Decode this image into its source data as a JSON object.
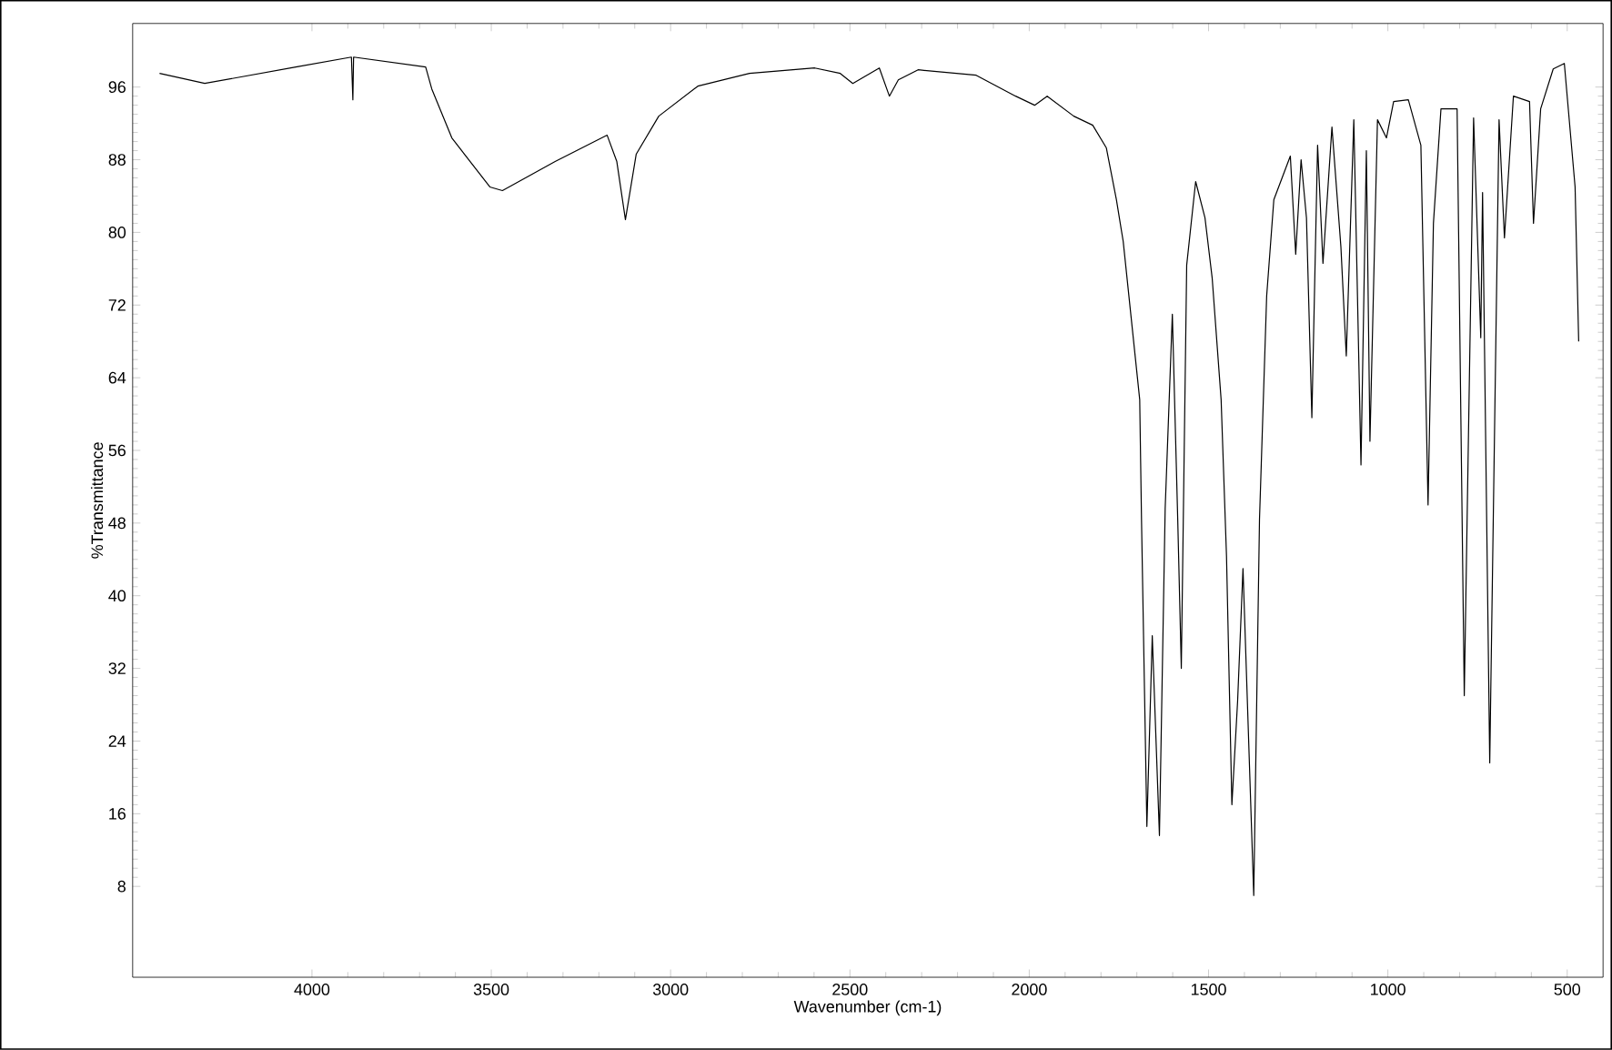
{
  "chart_data": {
    "type": "line",
    "xlabel": "Wavenumber (cm-1)",
    "ylabel": "%Transmittance",
    "xlim": [
      4500,
      400
    ],
    "ylim": [
      -2,
      103
    ],
    "xticks": [
      4000,
      3500,
      3000,
      2500,
      2000,
      1500,
      1000,
      500
    ],
    "yticks": [
      8,
      16,
      24,
      32,
      40,
      48,
      56,
      64,
      72,
      80,
      88,
      96
    ],
    "grid": false,
    "marker": "none",
    "line_style": "solid",
    "series": [
      {
        "color": "#000000",
        "x": [
          4425,
          4299,
          4045,
          3890,
          3886,
          3884,
          3683,
          3666,
          3610,
          3504,
          3469,
          3322,
          3177,
          3150,
          3126,
          3096,
          3033,
          2924,
          2780,
          2598,
          2527,
          2492,
          2418,
          2390,
          2365,
          2310,
          2148,
          2038,
          1985,
          1950,
          1876,
          1823,
          1785,
          1757,
          1738,
          1692,
          1687,
          1672,
          1657,
          1637,
          1621,
          1601,
          1586,
          1576,
          1561,
          1536,
          1510,
          1490,
          1465,
          1450,
          1435,
          1419,
          1404,
          1374,
          1358,
          1338,
          1318,
          1272,
          1257,
          1242,
          1227,
          1212,
          1196,
          1181,
          1156,
          1131,
          1116,
          1095,
          1075,
          1060,
          1050,
          1029,
          1004,
          984,
          943,
          908,
          888,
          873,
          852,
          807,
          787,
          761,
          741,
          736,
          716,
          690,
          675,
          650,
          605,
          594,
          574,
          539,
          508,
          478,
          468
        ],
        "values": [
          97.5,
          96.4,
          98.2,
          99.3,
          94.6,
          99.3,
          98.2,
          95.8,
          90.4,
          85,
          84.6,
          87.8,
          90.7,
          87.8,
          81.4,
          88.6,
          92.8,
          96.1,
          97.5,
          98.1,
          97.5,
          96.4,
          98.1,
          95,
          96.8,
          97.9,
          97.3,
          95,
          94,
          95,
          92.8,
          91.8,
          89.3,
          83.6,
          79,
          61.6,
          48.4,
          14.6,
          35.6,
          13.6,
          49.6,
          71,
          48.4,
          32,
          76.4,
          85.6,
          81.6,
          75,
          61.6,
          44.4,
          17,
          28.4,
          43,
          7,
          48.4,
          73,
          83.6,
          88.4,
          77.6,
          88,
          81.6,
          59.6,
          89.6,
          76.6,
          91.6,
          78.4,
          66.4,
          92.4,
          54.4,
          89,
          57,
          92.4,
          90.4,
          94.4,
          94.6,
          89.6,
          50,
          81,
          93.6,
          93.6,
          29,
          92.6,
          68.4,
          84.4,
          21.6,
          92.4,
          79.4,
          95,
          94.4,
          81,
          93.6,
          98,
          98.6,
          85,
          68
        ]
      }
    ]
  }
}
